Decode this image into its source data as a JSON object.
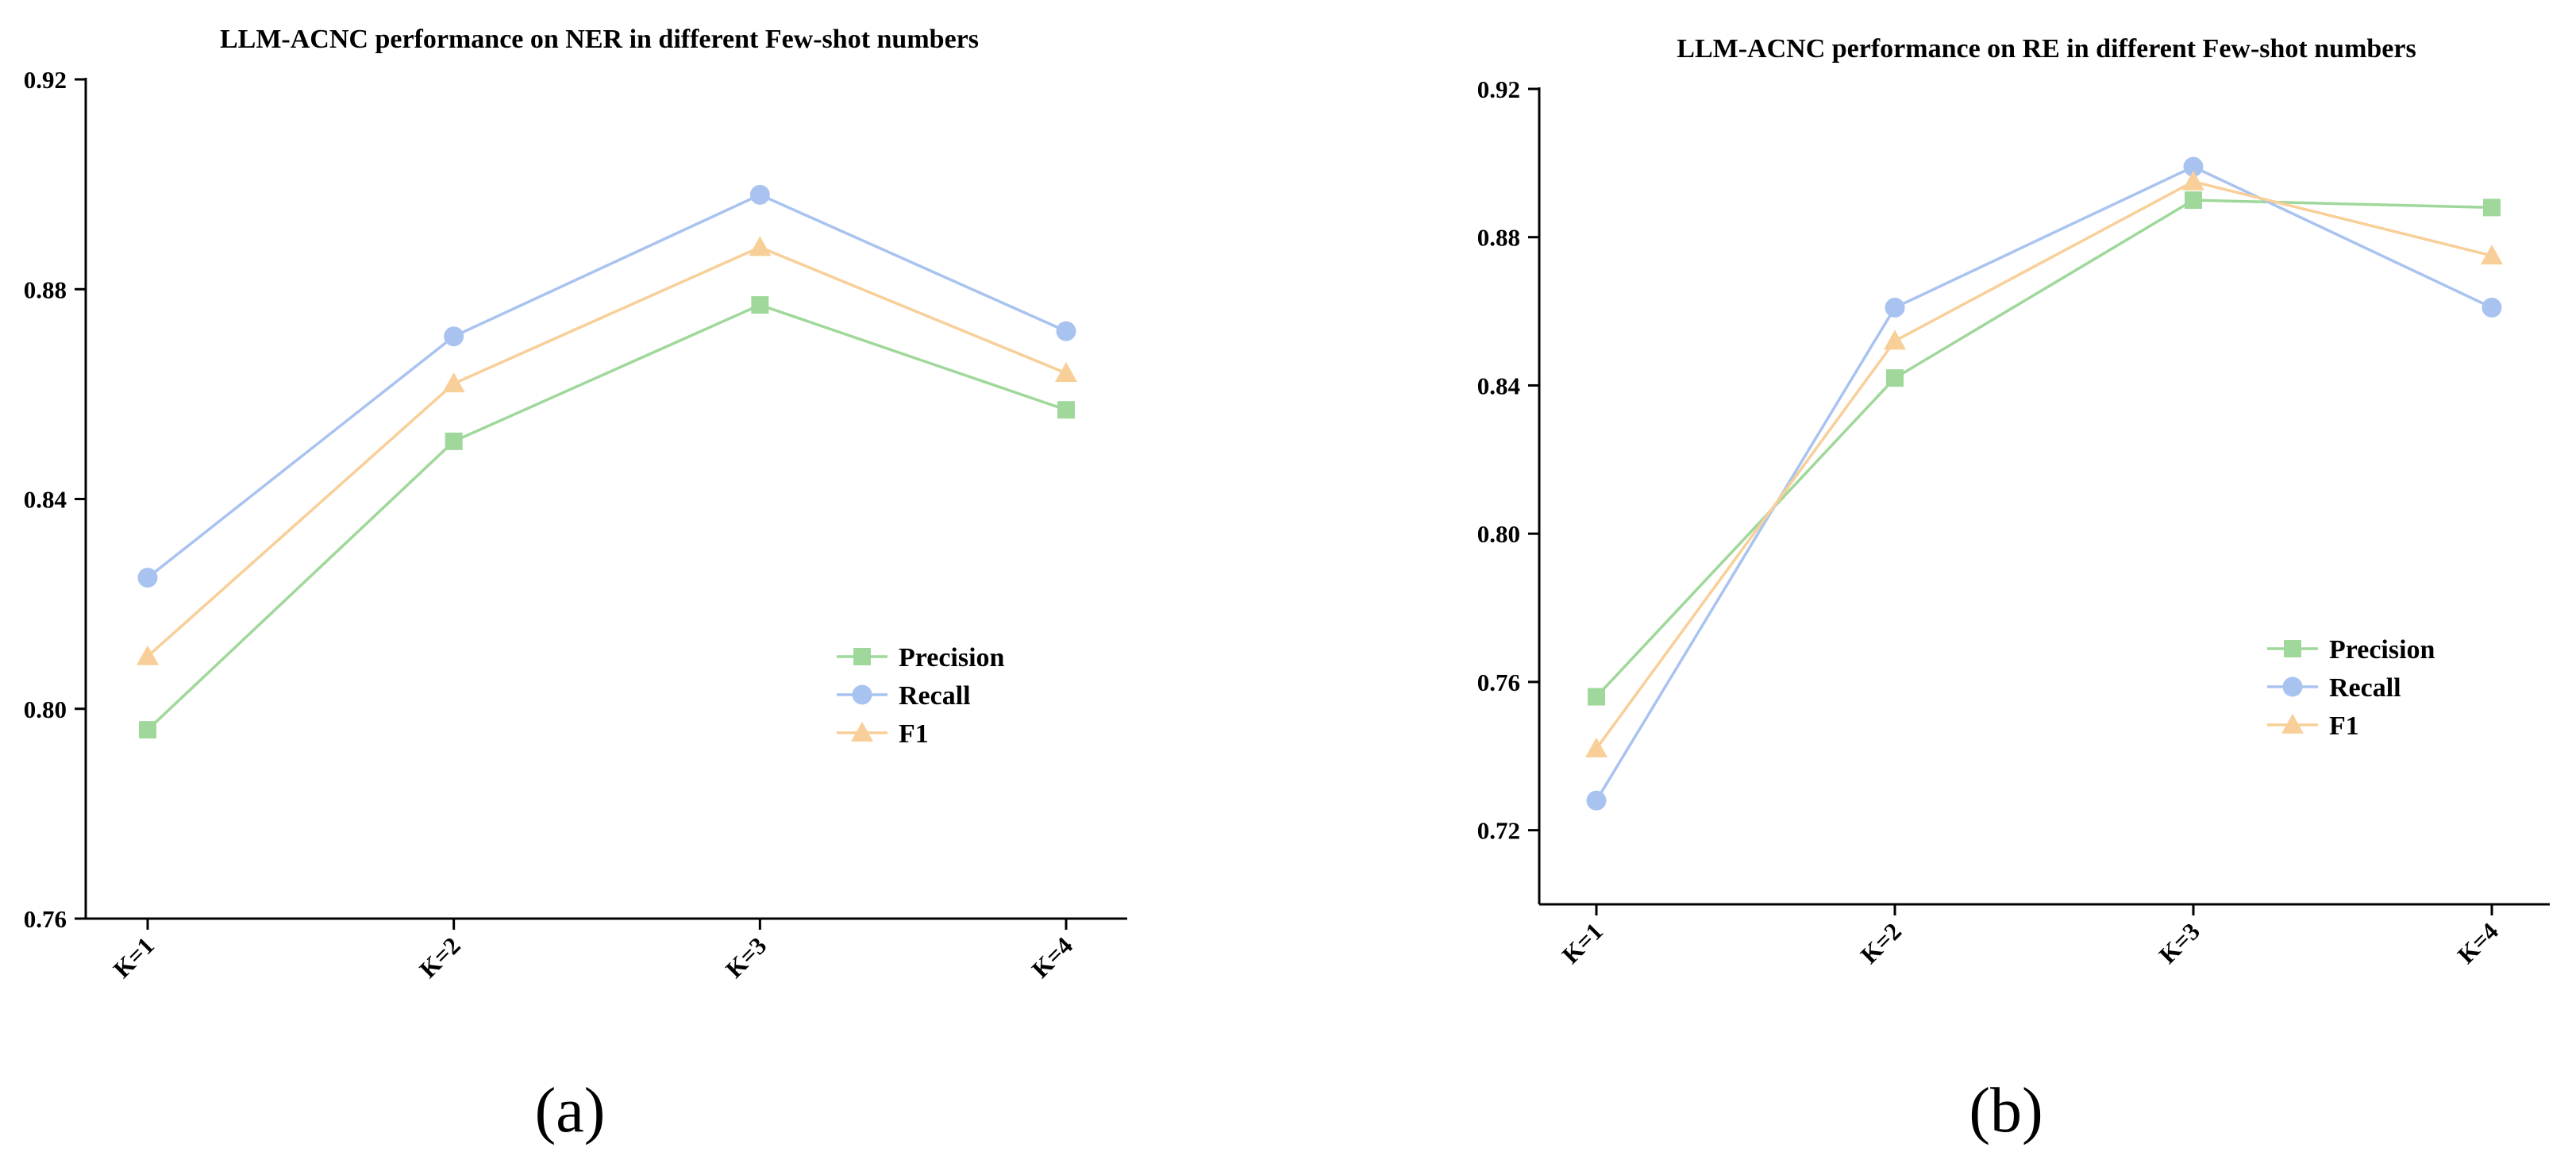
{
  "colors": {
    "Precision": "#9fd89a",
    "Recall": "#a9c3f0",
    "F1": "#f8cf98",
    "axis": "#000000"
  },
  "chart_data": [
    {
      "id": "a",
      "panel_label": "(a)",
      "type": "line",
      "title": "LLM-ACNC performance on NER in different Few-shot numbers",
      "categories": [
        "K=1",
        "K=2",
        "K=3",
        "K=4"
      ],
      "ylim": [
        0.76,
        0.92
      ],
      "yticks": [
        "0.76",
        "0.80",
        "0.84",
        "0.88",
        "0.92"
      ],
      "legend_position": "right",
      "series": [
        {
          "name": "Precision",
          "marker": "square",
          "values": [
            0.796,
            0.851,
            0.877,
            0.857
          ]
        },
        {
          "name": "Recall",
          "marker": "circle",
          "values": [
            0.825,
            0.871,
            0.898,
            0.872
          ]
        },
        {
          "name": "F1",
          "marker": "triangle",
          "values": [
            0.81,
            0.862,
            0.888,
            0.864
          ]
        }
      ]
    },
    {
      "id": "b",
      "panel_label": "(b)",
      "type": "line",
      "title": "LLM-ACNC performance on RE in different Few-shot numbers",
      "categories": [
        "K=1",
        "K=2",
        "K=3",
        "K=4"
      ],
      "ylim": [
        0.7,
        0.92
      ],
      "yticks": [
        "0.72",
        "0.76",
        "0.80",
        "0.84",
        "0.88",
        "0.92"
      ],
      "legend_position": "right",
      "series": [
        {
          "name": "Precision",
          "marker": "square",
          "values": [
            0.756,
            0.842,
            0.89,
            0.888
          ]
        },
        {
          "name": "Recall",
          "marker": "circle",
          "values": [
            0.728,
            0.861,
            0.899,
            0.861
          ]
        },
        {
          "name": "F1",
          "marker": "triangle",
          "values": [
            0.742,
            0.852,
            0.895,
            0.875
          ]
        }
      ]
    }
  ]
}
